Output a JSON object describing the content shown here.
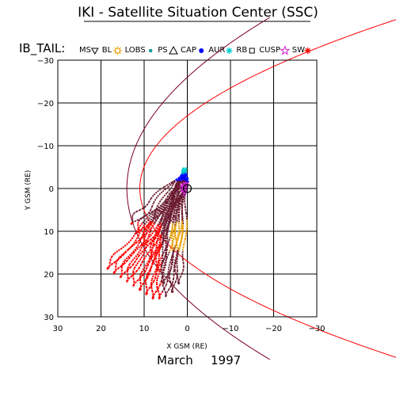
{
  "header": {
    "title": "IKI - Satellite Situation Center (SSC)",
    "orbit_label": "IB_TAIL:"
  },
  "legend": [
    {
      "label": "MS",
      "symbol": "triangle-down",
      "color": "#000000"
    },
    {
      "label": "BL",
      "symbol": "sun",
      "color": "#e8a000"
    },
    {
      "label": "LOBS",
      "symbol": "square",
      "color": "#1aa0a0"
    },
    {
      "label": "PS",
      "symbol": "triangle-up",
      "color": "#000000"
    },
    {
      "label": "CAP",
      "symbol": "circle",
      "color": "#0000ff"
    },
    {
      "label": "AUR",
      "symbol": "asterisk",
      "color": "#00d0d0"
    },
    {
      "label": "RB",
      "symbol": "square-open",
      "color": "#000000"
    },
    {
      "label": "CUSP",
      "symbol": "star",
      "color": "#d020d0"
    },
    {
      "label": "SW",
      "symbol": "asterisk",
      "color": "#ff0000"
    }
  ],
  "footer": {
    "date_month": "March",
    "date_year": "1997"
  },
  "chart_data": {
    "type": "scatter",
    "xlabel": "X GSM (RE)",
    "ylabel": "Y GSM (RE)",
    "xlim": [
      30,
      -30
    ],
    "ylim": [
      30,
      -30
    ],
    "x_ticks": [
      30,
      20,
      10,
      0,
      -10,
      -20,
      -30
    ],
    "y_ticks": [
      -30,
      -20,
      -10,
      0,
      10,
      20,
      30
    ],
    "grid": true,
    "boundaries": [
      {
        "name": "magnetopause",
        "color": "#ff0000",
        "x_nose": 11,
        "half_width_at_earth": 17
      },
      {
        "name": "bow-shock",
        "color": "#7a0020",
        "x_nose": 14,
        "half_width_at_earth": 26
      }
    ],
    "orbit_series": [
      {
        "region": "SW",
        "color": "#ff0000"
      },
      {
        "region": "MS",
        "color": "#6b1c30"
      },
      {
        "region": "BL",
        "color": "#e8a000"
      },
      {
        "region": "CAP",
        "color": "#0000ff"
      },
      {
        "region": "AUR",
        "color": "#00d0d0"
      },
      {
        "region": "CUSP",
        "color": "#d020d0"
      }
    ],
    "orbits": [
      {
        "apogee": [
          18.5,
          18.5
        ],
        "perigee": [
          0.4,
          -1.0
        ]
      },
      {
        "apogee": [
          17,
          19.5
        ],
        "perigee": [
          0.5,
          -1.2
        ]
      },
      {
        "apogee": [
          15.5,
          20.5
        ],
        "perigee": [
          0.6,
          -1.5
        ]
      },
      {
        "apogee": [
          14,
          21.5
        ],
        "perigee": [
          0.8,
          -1.8
        ]
      },
      {
        "apogee": [
          12.5,
          22.5
        ],
        "perigee": [
          0.9,
          -2.1
        ]
      },
      {
        "apogee": [
          11,
          23.5
        ],
        "perigee": [
          1.0,
          -2.5
        ]
      },
      {
        "apogee": [
          9.5,
          24.5
        ],
        "perigee": [
          1.0,
          -2.9
        ]
      },
      {
        "apogee": [
          8,
          25.5
        ],
        "perigee": [
          1.1,
          -3.3
        ]
      },
      {
        "apogee": [
          6.5,
          25.5
        ],
        "perigee": [
          1.1,
          -3.6
        ]
      },
      {
        "apogee": [
          5,
          25
        ],
        "perigee": [
          1.1,
          -3.9
        ]
      },
      {
        "apogee": [
          3.5,
          24
        ],
        "perigee": [
          1.0,
          -4.2
        ]
      },
      {
        "apogee": [
          2,
          22
        ],
        "perigee": [
          0.9,
          -4.5
        ]
      },
      {
        "apogee": [
          13,
          8
        ],
        "perigee": [
          0.4,
          -3.0
        ]
      },
      {
        "apogee": [
          11.5,
          10
        ],
        "perigee": [
          0.4,
          -3.3
        ]
      },
      {
        "apogee": [
          10,
          13
        ],
        "perigee": [
          0.4,
          -3.6
        ]
      },
      {
        "apogee": [
          8.5,
          16
        ],
        "perigee": [
          0.4,
          -3.9
        ]
      },
      {
        "apogee": [
          7,
          19
        ],
        "perigee": [
          0.4,
          -4.2
        ]
      },
      {
        "apogee": [
          5.5,
          22
        ],
        "perigee": [
          0.3,
          -4.5
        ]
      }
    ]
  }
}
